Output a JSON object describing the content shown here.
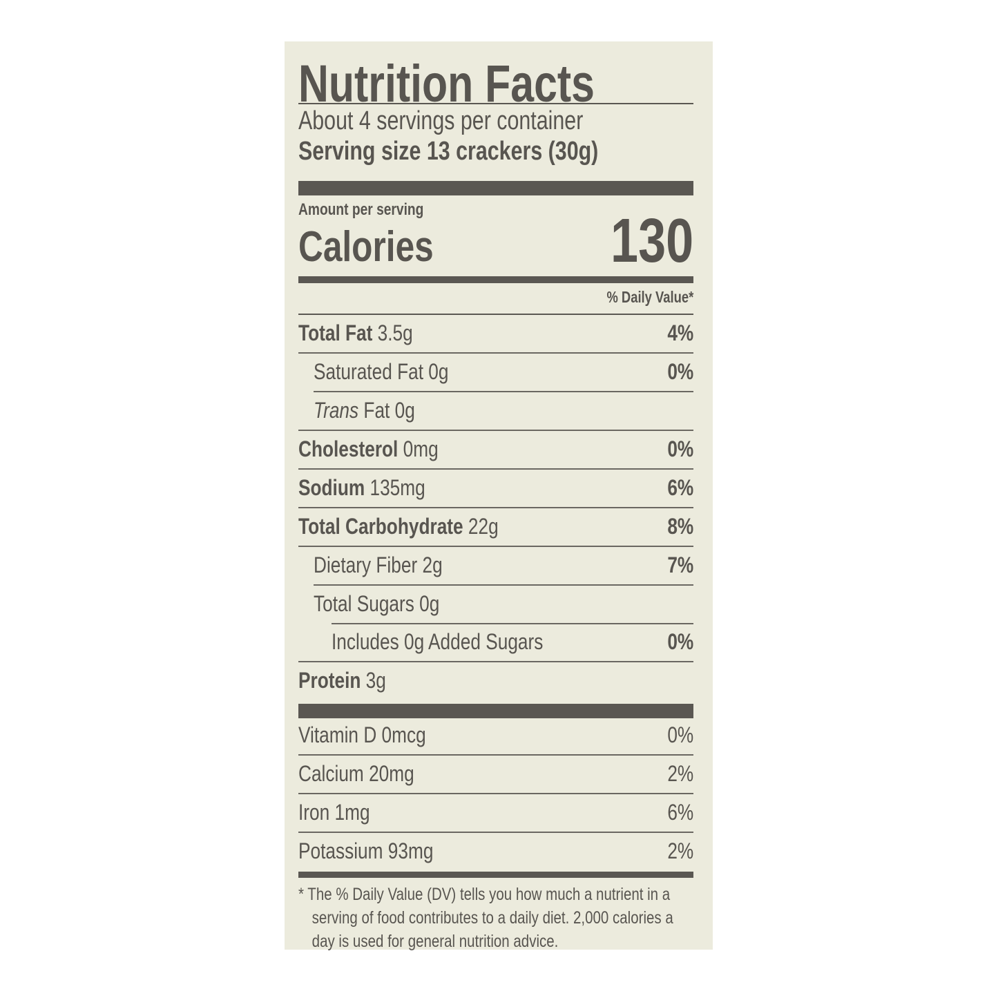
{
  "label": {
    "title": "Nutrition Facts",
    "servings_per_container": "About 4 servings per container",
    "serving_size": "Serving size 13 crackers (30g)",
    "amount_per_serving": "Amount per serving",
    "calories_label": "Calories",
    "calories_value": "130",
    "daily_value_header": "% Daily Value*",
    "nutrients": [
      {
        "name": "Total Fat",
        "amount": "3.5g",
        "dv": "4%"
      },
      {
        "name": "Saturated Fat",
        "amount": "0g",
        "dv": "0%"
      },
      {
        "name_italic": "Trans",
        "name": "Fat",
        "amount": "0g",
        "dv": ""
      },
      {
        "name": "Cholesterol",
        "amount": "0mg",
        "dv": "0%"
      },
      {
        "name": "Sodium",
        "amount": "135mg",
        "dv": "6%"
      },
      {
        "name": "Total Carbohydrate",
        "amount": "22g",
        "dv": "8%"
      },
      {
        "name": "Dietary Fiber",
        "amount": "2g",
        "dv": "7%"
      },
      {
        "name": "Total Sugars",
        "amount": "0g",
        "dv": ""
      },
      {
        "name": "Includes 0g Added Sugars",
        "amount": "",
        "dv": "0%"
      },
      {
        "name": "Protein",
        "amount": "3g",
        "dv": ""
      }
    ],
    "vitamins": [
      {
        "name": "Vitamin D 0mcg",
        "dv": "0%"
      },
      {
        "name": "Calcium 20mg",
        "dv": "2%"
      },
      {
        "name": "Iron 1mg",
        "dv": "6%"
      },
      {
        "name": "Potassium 93mg",
        "dv": "2%"
      }
    ],
    "footnote": "* The % Daily Value (DV) tells you how much a nutrient in a serving of food contributes to a daily diet. 2,000 calories a day is used for general nutrition advice.",
    "colors": {
      "background": "#ecebdd",
      "ink": "#585550"
    }
  }
}
